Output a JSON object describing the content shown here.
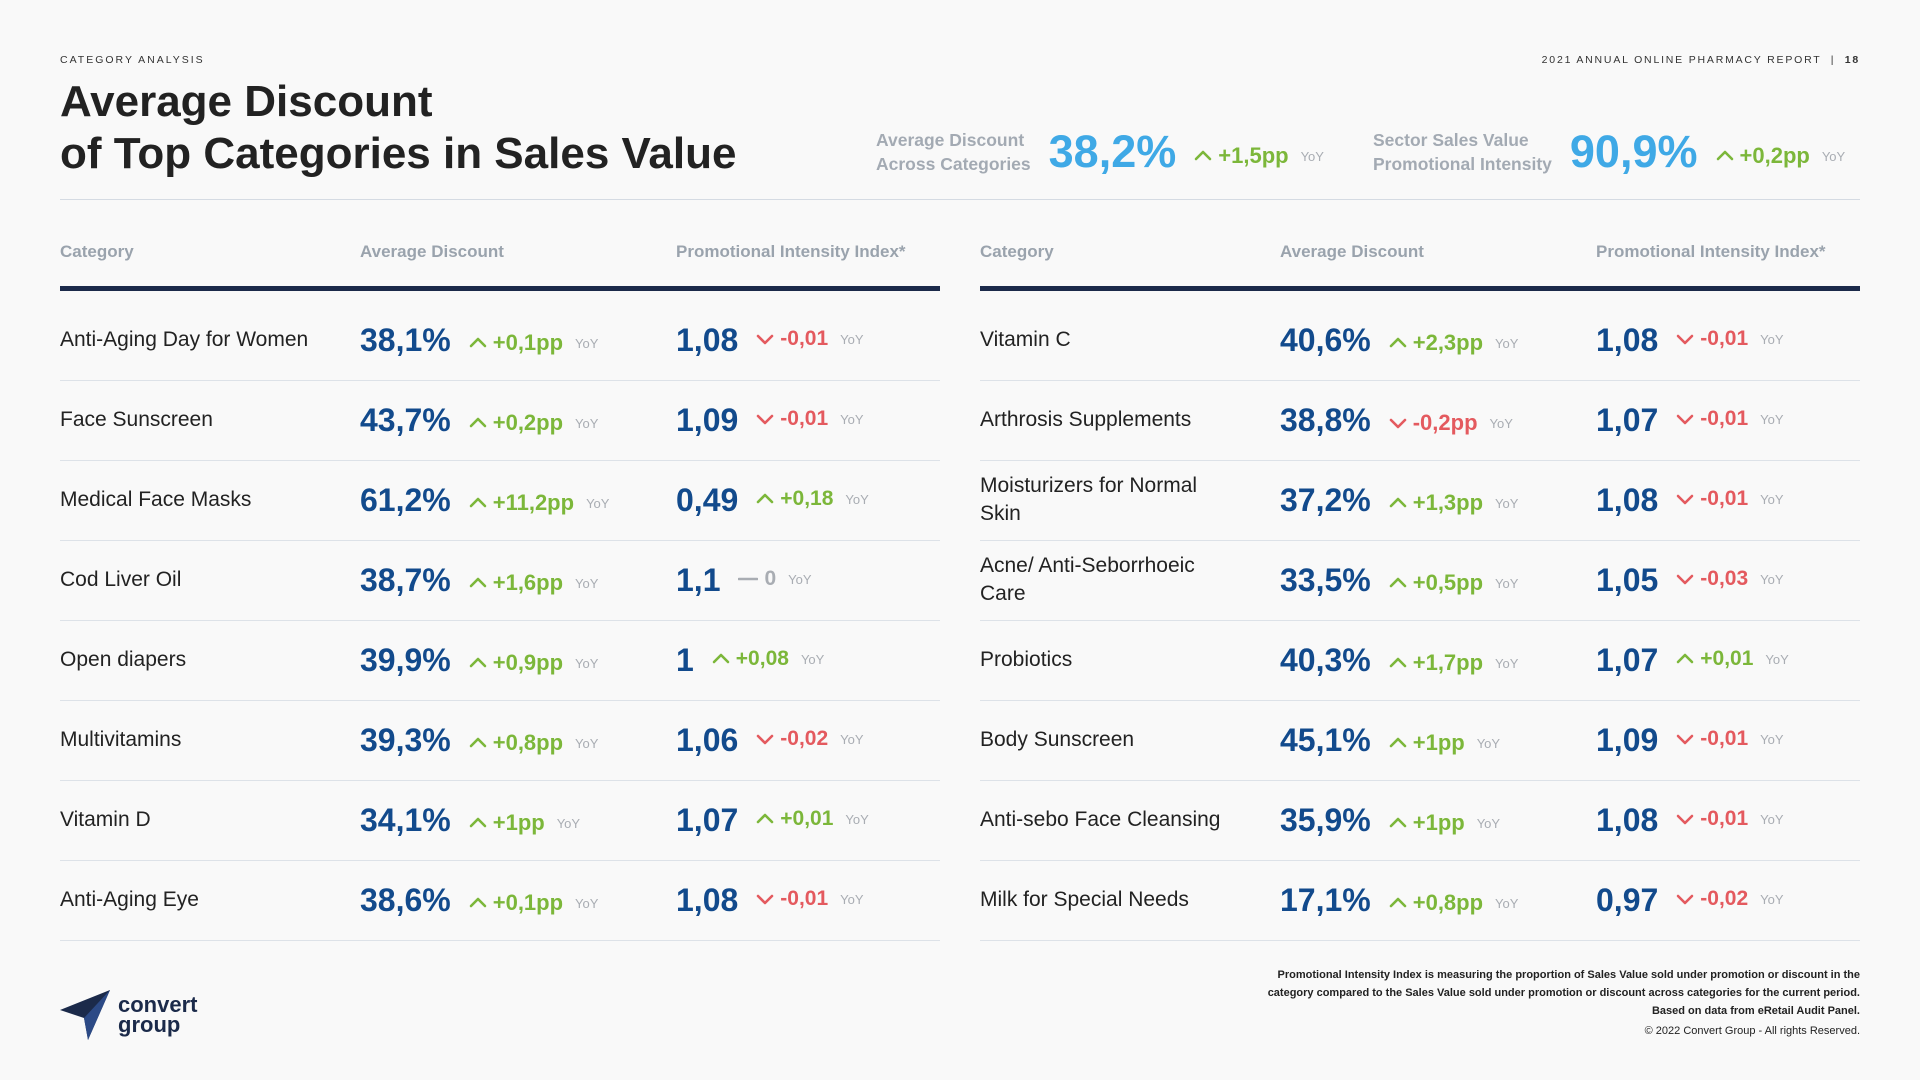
{
  "header": {
    "section": "CATEGORY ANALYSIS",
    "report": "2021 ANNUAL ONLINE PHARMACY REPORT",
    "separator": "|",
    "page": "18",
    "title_line1": "Average Discount",
    "title_line2": "of Top Categories in Sales Value"
  },
  "stats": [
    {
      "label1": "Average Discount",
      "label2": "Across Categories",
      "value": "38,2%",
      "change": "+1,5pp",
      "dir": "up",
      "yoy": "YoY"
    },
    {
      "label1": "Sector Sales Value",
      "label2": "Promotional Intensity",
      "value": "90,9%",
      "change": "+0,2pp",
      "dir": "up",
      "yoy": "YoY"
    }
  ],
  "columns": {
    "category": "Category",
    "discount": "Average Discount",
    "pii": "Promotional Intensity Index*"
  },
  "left_rows": [
    {
      "cat": "Anti-Aging Day for Women",
      "disc": "38,1%",
      "dchg": "+0,1pp",
      "ddir": "up",
      "pii": "1,08",
      "pchg": "-0,01",
      "pdir": "down"
    },
    {
      "cat": "Face Sunscreen",
      "disc": "43,7%",
      "dchg": "+0,2pp",
      "ddir": "up",
      "pii": "1,09",
      "pchg": "-0,01",
      "pdir": "down"
    },
    {
      "cat": "Medical Face Masks",
      "disc": "61,2%",
      "dchg": "+11,2pp",
      "ddir": "up",
      "pii": "0,49",
      "pchg": "+0,18",
      "pdir": "up"
    },
    {
      "cat": "Cod Liver Oil",
      "disc": "38,7%",
      "dchg": "+1,6pp",
      "ddir": "up",
      "pii": "1,1",
      "pchg": "0",
      "pdir": "flat"
    },
    {
      "cat": "Open diapers",
      "disc": "39,9%",
      "dchg": "+0,9pp",
      "ddir": "up",
      "pii": "1",
      "pchg": "+0,08",
      "pdir": "up"
    },
    {
      "cat": "Multivitamins",
      "disc": "39,3%",
      "dchg": "+0,8pp",
      "ddir": "up",
      "pii": "1,06",
      "pchg": "-0,02",
      "pdir": "down"
    },
    {
      "cat": "Vitamin D",
      "disc": "34,1%",
      "dchg": "+1pp",
      "ddir": "up",
      "pii": "1,07",
      "pchg": "+0,01",
      "pdir": "up"
    },
    {
      "cat": "Anti-Aging Eye",
      "disc": "38,6%",
      "dchg": "+0,1pp",
      "ddir": "up",
      "pii": "1,08",
      "pchg": "-0,01",
      "pdir": "down"
    }
  ],
  "right_rows": [
    {
      "cat": "Vitamin C",
      "disc": "40,6%",
      "dchg": "+2,3pp",
      "ddir": "up",
      "pii": "1,08",
      "pchg": "-0,01",
      "pdir": "down"
    },
    {
      "cat": "Arthrosis Supplements",
      "disc": "38,8%",
      "dchg": "-0,2pp",
      "ddir": "down",
      "pii": "1,07",
      "pchg": "-0,01",
      "pdir": "down"
    },
    {
      "cat": "Moisturizers for Normal Skin",
      "disc": "37,2%",
      "dchg": "+1,3pp",
      "ddir": "up",
      "pii": "1,08",
      "pchg": "-0,01",
      "pdir": "down"
    },
    {
      "cat": "Acne/ Anti-Seborrhoeic Care",
      "disc": "33,5%",
      "dchg": "+0,5pp",
      "ddir": "up",
      "pii": "1,05",
      "pchg": "-0,03",
      "pdir": "down"
    },
    {
      "cat": "Probiotics",
      "disc": "40,3%",
      "dchg": "+1,7pp",
      "ddir": "up",
      "pii": "1,07",
      "pchg": "+0,01",
      "pdir": "up"
    },
    {
      "cat": "Body Sunscreen",
      "disc": "45,1%",
      "dchg": "+1pp",
      "ddir": "up",
      "pii": "1,09",
      "pchg": "-0,01",
      "pdir": "down"
    },
    {
      "cat": "Anti-sebo Face Cleansing",
      "disc": "35,9%",
      "dchg": "+1pp",
      "ddir": "up",
      "pii": "1,08",
      "pchg": "-0,01",
      "pdir": "down"
    },
    {
      "cat": "Milk for Special Needs",
      "disc": "17,1%",
      "dchg": "+0,8pp",
      "ddir": "up",
      "pii": "0,97",
      "pchg": "-0,02",
      "pdir": "down"
    }
  ],
  "yoy": "YoY",
  "footer": {
    "note1": "Promotional Intensity Index is measuring the proportion of Sales Value sold under promotion or discount in the",
    "note2": "category compared to the Sales Value sold under promotion or discount across categories for the current period.",
    "note3": "Based on data from eRetail Audit Panel.",
    "copyright": "© 2022 Convert Group - All rights Reserved."
  },
  "logo": {
    "line1": "convert",
    "line2": "group",
    "icon": "paper-plane-icon"
  },
  "colors": {
    "up": "#7cb73a",
    "down": "#e45a5f",
    "value": "#124a8c",
    "accent": "#3fa9e6"
  }
}
